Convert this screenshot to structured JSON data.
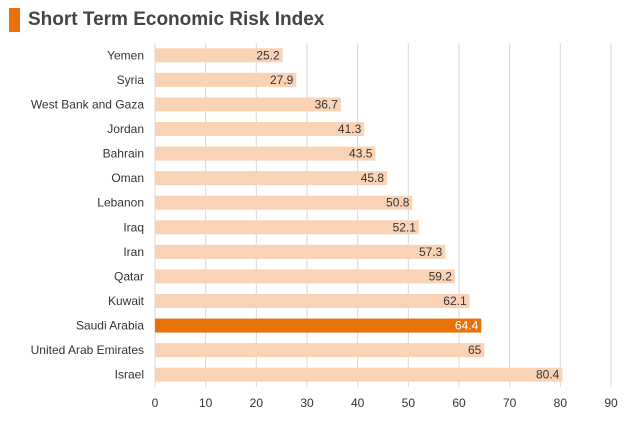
{
  "title": "Short Term Economic Risk Index",
  "colors": {
    "accent": "#E8710A",
    "bar": "#FAD3B6",
    "highlight_bar": "#E8710A",
    "grid": "#D9D9D9",
    "value_text": "#333333",
    "highlight_value_text": "#FFFFFF"
  },
  "chart_data": {
    "type": "bar",
    "orientation": "horizontal",
    "title": "Short Term Economic Risk Index",
    "categories": [
      "Yemen",
      "Syria",
      "West Bank and Gaza",
      "Jordan",
      "Bahrain",
      "Oman",
      "Lebanon",
      "Iraq",
      "Iran",
      "Qatar",
      "Kuwait",
      "Saudi Arabia",
      "United Arab Emirates",
      "Israel"
    ],
    "values": [
      25.2,
      27.9,
      36.7,
      41.3,
      43.5,
      45.8,
      50.8,
      52.1,
      57.3,
      59.2,
      62.1,
      64.4,
      65,
      80.4
    ],
    "value_labels": [
      "25.2",
      "27.9",
      "36.7",
      "41.3",
      "43.5",
      "45.8",
      "50.8",
      "52.1",
      "57.3",
      "59.2",
      "62.1",
      "64.4",
      "65",
      "80.4"
    ],
    "highlight": "Saudi Arabia",
    "xlim": [
      0,
      90
    ],
    "xticks": [
      "0",
      "10",
      "20",
      "30",
      "40",
      "50",
      "60",
      "70",
      "80",
      "90"
    ],
    "grid": true,
    "legend": "none",
    "xlabel": "",
    "ylabel": ""
  }
}
